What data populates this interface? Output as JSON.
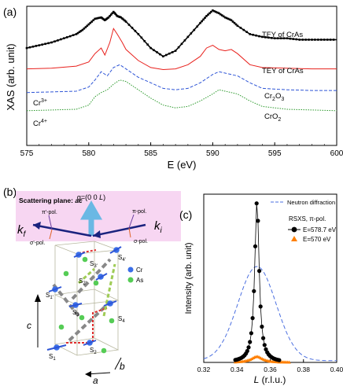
{
  "colors": {
    "tfy": "#000000",
    "tey": "#e8211d",
    "cr2o3": "#2e55d6",
    "cro2": "#2d9a2d",
    "neutron": "#4b6fe0",
    "rsxs_on": "#000000",
    "rsxs_off": "#ff7f00",
    "scattering_bg": "#f7d6f2",
    "cr_atom": "#3b6fe8",
    "as_atom": "#55cc55"
  },
  "chart_data": [
    {
      "panel": "(a)",
      "type": "line",
      "xlabel": "E (eV)",
      "ylabel": "XAS (arb. unit)",
      "xlim": [
        575,
        600
      ],
      "xticks": [
        575,
        580,
        585,
        590,
        595,
        600
      ],
      "grid": false,
      "series": [
        {
          "name": "TFY of CrAs",
          "style": "dotted-markers",
          "x": [
            575,
            576,
            577,
            578,
            579,
            579.5,
            580,
            580.5,
            581,
            581.3,
            581.6,
            582,
            582.3,
            582.6,
            583,
            584,
            585,
            586,
            587,
            588,
            589,
            589.5,
            590,
            590.5,
            591,
            591.5,
            592,
            593,
            594,
            595,
            596,
            597,
            598,
            599,
            600
          ],
          "y": [
            0.7,
            0.72,
            0.74,
            0.77,
            0.8,
            0.83,
            0.87,
            0.91,
            0.92,
            0.9,
            0.92,
            0.96,
            0.93,
            0.92,
            0.89,
            0.8,
            0.7,
            0.64,
            0.68,
            0.78,
            0.88,
            0.93,
            0.97,
            0.95,
            0.92,
            0.9,
            0.86,
            0.8,
            0.78,
            0.77,
            0.77,
            0.76,
            0.76,
            0.76,
            0.76
          ]
        },
        {
          "name": "TEY of CrAs",
          "style": "solid",
          "x": [
            575,
            577,
            579,
            580,
            580.5,
            581,
            581.3,
            581.7,
            582,
            582.3,
            582.7,
            583,
            584,
            585,
            586,
            587,
            588,
            589,
            589.5,
            590,
            590.5,
            591,
            591.5,
            592,
            593,
            594,
            596,
            598,
            600
          ],
          "y": [
            0.55,
            0.555,
            0.57,
            0.6,
            0.66,
            0.7,
            0.65,
            0.74,
            0.84,
            0.8,
            0.74,
            0.69,
            0.61,
            0.56,
            0.545,
            0.55,
            0.58,
            0.64,
            0.7,
            0.72,
            0.69,
            0.68,
            0.69,
            0.66,
            0.58,
            0.56,
            0.555,
            0.55,
            0.55
          ]
        },
        {
          "name": "Cr2O3",
          "style": "dashed",
          "x": [
            575,
            577,
            579,
            580,
            580.5,
            581,
            581.5,
            582,
            582.5,
            583,
            584,
            585,
            586,
            587,
            588,
            589,
            590,
            590.5,
            591,
            592,
            593,
            594,
            596,
            598,
            600
          ],
          "y": [
            0.38,
            0.385,
            0.39,
            0.42,
            0.47,
            0.53,
            0.5,
            0.56,
            0.58,
            0.55,
            0.49,
            0.45,
            0.41,
            0.4,
            0.41,
            0.45,
            0.51,
            0.53,
            0.52,
            0.5,
            0.45,
            0.41,
            0.4,
            0.395,
            0.395
          ]
        },
        {
          "name": "CrO2",
          "style": "dotted",
          "x": [
            575,
            577,
            579,
            580,
            580.5,
            581,
            581.5,
            582,
            582.5,
            583,
            584,
            585,
            586,
            587,
            588,
            589,
            590,
            590.5,
            591,
            592,
            593,
            594,
            596,
            598,
            600
          ],
          "y": [
            0.25,
            0.255,
            0.26,
            0.29,
            0.35,
            0.38,
            0.4,
            0.44,
            0.47,
            0.46,
            0.4,
            0.34,
            0.29,
            0.27,
            0.28,
            0.32,
            0.37,
            0.4,
            0.39,
            0.37,
            0.32,
            0.28,
            0.26,
            0.255,
            0.25
          ]
        }
      ],
      "labels": {
        "tfy": "TFY of CrAs",
        "tey": "TEY of CrAs",
        "cr2o3_main": "Cr",
        "cr2o3_sub": "2",
        "cr2o3_mid": "O",
        "cr2o3_sub2": "3",
        "cro2_main": "CrO",
        "cro2_sub": "2",
        "cr3": "Cr",
        "cr3_sup": "3+",
        "cr4": "Cr",
        "cr4_sup": "4+"
      }
    },
    {
      "panel": "(c)",
      "type": "line",
      "xlabel_italic": "L",
      "xlabel_rest": " (r.l.u.)",
      "ylabel": "Intensity (arb. unit)",
      "xlim": [
        0.32,
        0.4
      ],
      "xticks": [
        0.32,
        0.34,
        0.36,
        0.38,
        0.4
      ],
      "legend_placement": "top-right",
      "series": [
        {
          "name": "Neutron diffraction",
          "style": "dashed",
          "gaussian": {
            "center": 0.352,
            "sigma": 0.0115,
            "amplitude": 0.56,
            "baseline": 0.01
          }
        },
        {
          "name": "E=578.7 eV",
          "style": "markers-filled-circle",
          "lorentz": {
            "center": 0.352,
            "hwhm": 0.0016,
            "amplitude": 0.96,
            "baseline": 0.0
          },
          "x_range": [
            0.339,
            0.366
          ],
          "step": 0.0008
        },
        {
          "name": "E=570 eV",
          "style": "markers-triangle",
          "lorentz": {
            "center": 0.352,
            "hwhm": 0.004,
            "amplitude": 0.035,
            "baseline": 0.0
          },
          "x_range": [
            0.339,
            0.372
          ],
          "step": 0.0009
        }
      ],
      "legend": {
        "neutron": "Neutron diffraction",
        "rsxs_title": "RSXS, π-pol.",
        "rsxs_on": "E=578.7 eV",
        "rsxs_off": "E=570 eV"
      }
    }
  ],
  "panel_labels": {
    "a": "(a)",
    "b": "(b)",
    "c": "(c)"
  },
  "panel_b": {
    "scattering_plane": "Scattering plane: ",
    "scattering_plane_italic": "ac",
    "q_label": "q=(0 0 ",
    "q_label_L": "L",
    "q_label_end": ")",
    "kf": "k",
    "kf_sub": "f",
    "ki": "k",
    "ki_sub": "i",
    "pi_pol_f": "π'-pol.",
    "sigma_pol_f": "σ'-pol.",
    "pi_pol_i": "π-pol.",
    "sigma_pol_i": "σ-pol.",
    "legend_cr": "Cr",
    "legend_as": "As",
    "axis_c": "c",
    "axis_a": "a",
    "axis_b": "b",
    "sites": [
      {
        "main": "S",
        "sub": "3'"
      },
      {
        "main": "S",
        "sub": "4'"
      },
      {
        "main": "S",
        "sub": "2'"
      },
      {
        "main": "S",
        "sub": "1'"
      },
      {
        "main": "S",
        "sub": "3"
      },
      {
        "main": "S",
        "sub": "4"
      },
      {
        "main": "S",
        "sub": "1"
      },
      {
        "main": "S",
        "sub": "2"
      }
    ]
  }
}
